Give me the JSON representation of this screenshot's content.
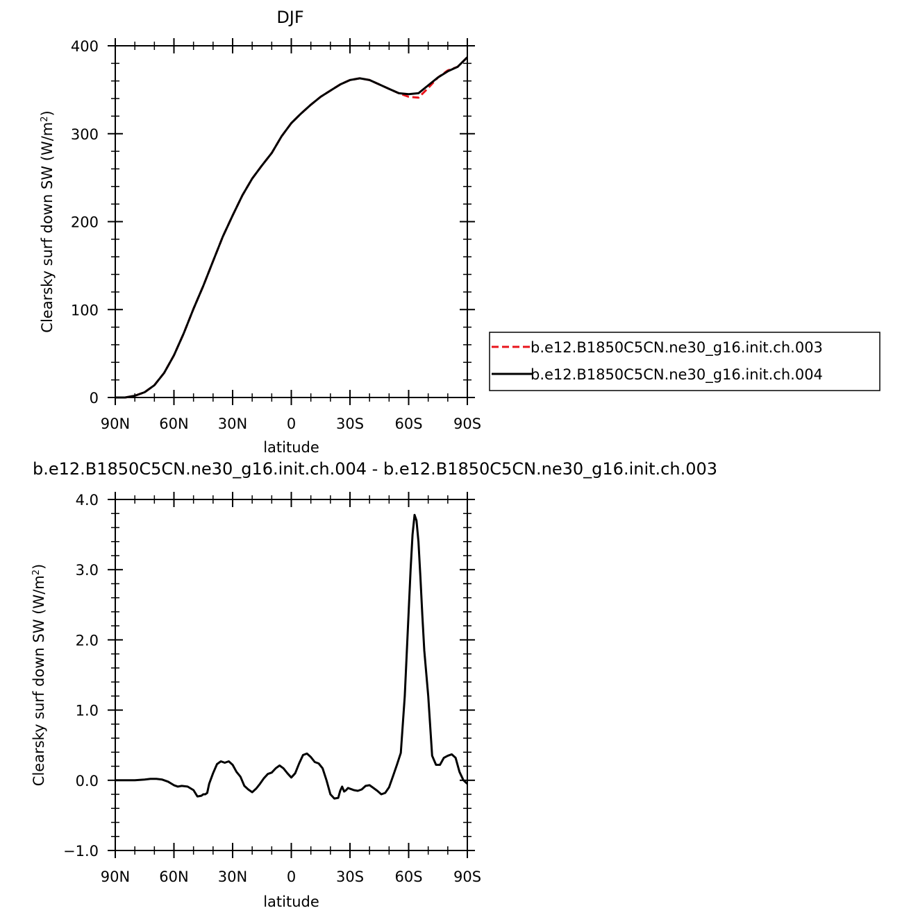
{
  "chart_data": [
    {
      "type": "line",
      "title": "DJF",
      "xlabel": "latitude",
      "ylabel_main": "Clearsky surf down SW (W/m",
      "ylabel_sup": "2",
      "ylabel_close": ")",
      "xlim": [
        -90,
        90
      ],
      "ylim": [
        0,
        400
      ],
      "x_ticks": [
        -90,
        -60,
        -30,
        0,
        30,
        60,
        90
      ],
      "x_tick_labels": [
        "90N",
        "60N",
        "30N",
        "0",
        "30S",
        "60S",
        "90S"
      ],
      "y_ticks": [
        0,
        100,
        200,
        300,
        400
      ],
      "y_tick_labels": [
        "0",
        "100",
        "200",
        "300",
        "400"
      ],
      "grid": false,
      "legend_position": "right",
      "series": [
        {
          "name": "b.e12.B1850C5CN.ne30_g16.init.ch.003",
          "color": "#e8141b",
          "dash": "dashed",
          "x": [
            -90,
            -85,
            -80,
            -75,
            -70,
            -65,
            -60,
            -55,
            -50,
            -45,
            -40,
            -35,
            -30,
            -25,
            -20,
            -15,
            -10,
            -5,
            0,
            5,
            10,
            15,
            20,
            25,
            30,
            35,
            40,
            45,
            50,
            55,
            60,
            65,
            70,
            75,
            80,
            85,
            90
          ],
          "y": [
            0,
            0,
            2,
            6,
            14,
            28,
            48,
            73,
            101,
            127,
            155,
            183,
            207,
            230,
            249,
            264,
            278,
            297,
            312,
            323,
            333,
            342,
            349,
            356,
            361,
            363,
            361,
            356,
            351,
            346,
            342,
            341,
            352,
            364,
            372,
            376,
            387
          ]
        },
        {
          "name": "b.e12.B1850C5CN.ne30_g16.init.ch.004",
          "color": "#000000",
          "dash": "solid",
          "x": [
            -90,
            -85,
            -80,
            -75,
            -70,
            -65,
            -60,
            -55,
            -50,
            -45,
            -40,
            -35,
            -30,
            -25,
            -20,
            -15,
            -10,
            -5,
            0,
            5,
            10,
            15,
            20,
            25,
            30,
            35,
            40,
            45,
            50,
            55,
            60,
            65,
            70,
            75,
            80,
            85,
            90
          ],
          "y": [
            0,
            0,
            2,
            6,
            14,
            28,
            48,
            73,
            101,
            127,
            155,
            183,
            207,
            230,
            249,
            264,
            278,
            297,
            312,
            323,
            333,
            342,
            349,
            356,
            361,
            363,
            361,
            356,
            351,
            346,
            345,
            346,
            355,
            364,
            371,
            376,
            387
          ]
        }
      ]
    },
    {
      "type": "line",
      "title": "b.e12.B1850C5CN.ne30_g16.init.ch.004 - b.e12.B1850C5CN.ne30_g16.init.ch.003",
      "xlabel": "latitude",
      "ylabel_main": "Clearsky surf down SW (W/m",
      "ylabel_sup": "2",
      "ylabel_close": ")",
      "xlim": [
        -90,
        90
      ],
      "ylim": [
        -1.0,
        4.0
      ],
      "x_ticks": [
        -90,
        -60,
        -30,
        0,
        30,
        60,
        90
      ],
      "x_tick_labels": [
        "90N",
        "60N",
        "30N",
        "0",
        "30S",
        "60S",
        "90S"
      ],
      "y_ticks": [
        -1.0,
        0.0,
        1.0,
        2.0,
        3.0,
        4.0
      ],
      "y_tick_labels": [
        "−1.0",
        "0.0",
        "1.0",
        "2.0",
        "3.0",
        "4.0"
      ],
      "grid": false,
      "series": [
        {
          "color": "#000000",
          "dash": "solid",
          "x": [
            -90,
            -80,
            -75,
            -72,
            -69,
            -66,
            -63,
            -60,
            -58,
            -56,
            -53,
            -50,
            -48,
            -46,
            -45,
            -44,
            -43,
            -42,
            -40,
            -38,
            -36,
            -34,
            -32,
            -30,
            -28,
            -26,
            -24,
            -22,
            -20,
            -18,
            -16,
            -14,
            -12,
            -10,
            -8,
            -6,
            -4,
            -2,
            0,
            2,
            4,
            6,
            8,
            10,
            12,
            14,
            16,
            18,
            20,
            22,
            24,
            25,
            26,
            27,
            28,
            29,
            30,
            32,
            34,
            36,
            38,
            40,
            42,
            44,
            46,
            48,
            50,
            52,
            54,
            56,
            58,
            60,
            61,
            62,
            63,
            64,
            65,
            66,
            67,
            68,
            70,
            72,
            74,
            76,
            78,
            80,
            82,
            84,
            86,
            88,
            90
          ],
          "y": [
            0,
            0,
            0.01,
            0.02,
            0.02,
            0.01,
            -0.02,
            -0.07,
            -0.09,
            -0.08,
            -0.09,
            -0.14,
            -0.23,
            -0.22,
            -0.2,
            -0.2,
            -0.18,
            -0.05,
            0.1,
            0.23,
            0.27,
            0.25,
            0.27,
            0.22,
            0.12,
            0.05,
            -0.08,
            -0.13,
            -0.17,
            -0.12,
            -0.05,
            0.03,
            0.09,
            0.11,
            0.17,
            0.21,
            0.17,
            0.1,
            0.04,
            0.1,
            0.24,
            0.36,
            0.38,
            0.33,
            0.26,
            0.24,
            0.17,
            0.0,
            -0.2,
            -0.26,
            -0.25,
            -0.15,
            -0.09,
            -0.16,
            -0.14,
            -0.11,
            -0.12,
            -0.14,
            -0.15,
            -0.13,
            -0.08,
            -0.07,
            -0.11,
            -0.15,
            -0.2,
            -0.18,
            -0.1,
            0.06,
            0.22,
            0.39,
            1.2,
            2.4,
            3.0,
            3.5,
            3.78,
            3.7,
            3.4,
            2.9,
            2.35,
            1.85,
            1.2,
            0.35,
            0.22,
            0.22,
            0.32,
            0.35,
            0.37,
            0.32,
            0.12,
            0.0,
            -0.05
          ]
        }
      ]
    }
  ]
}
